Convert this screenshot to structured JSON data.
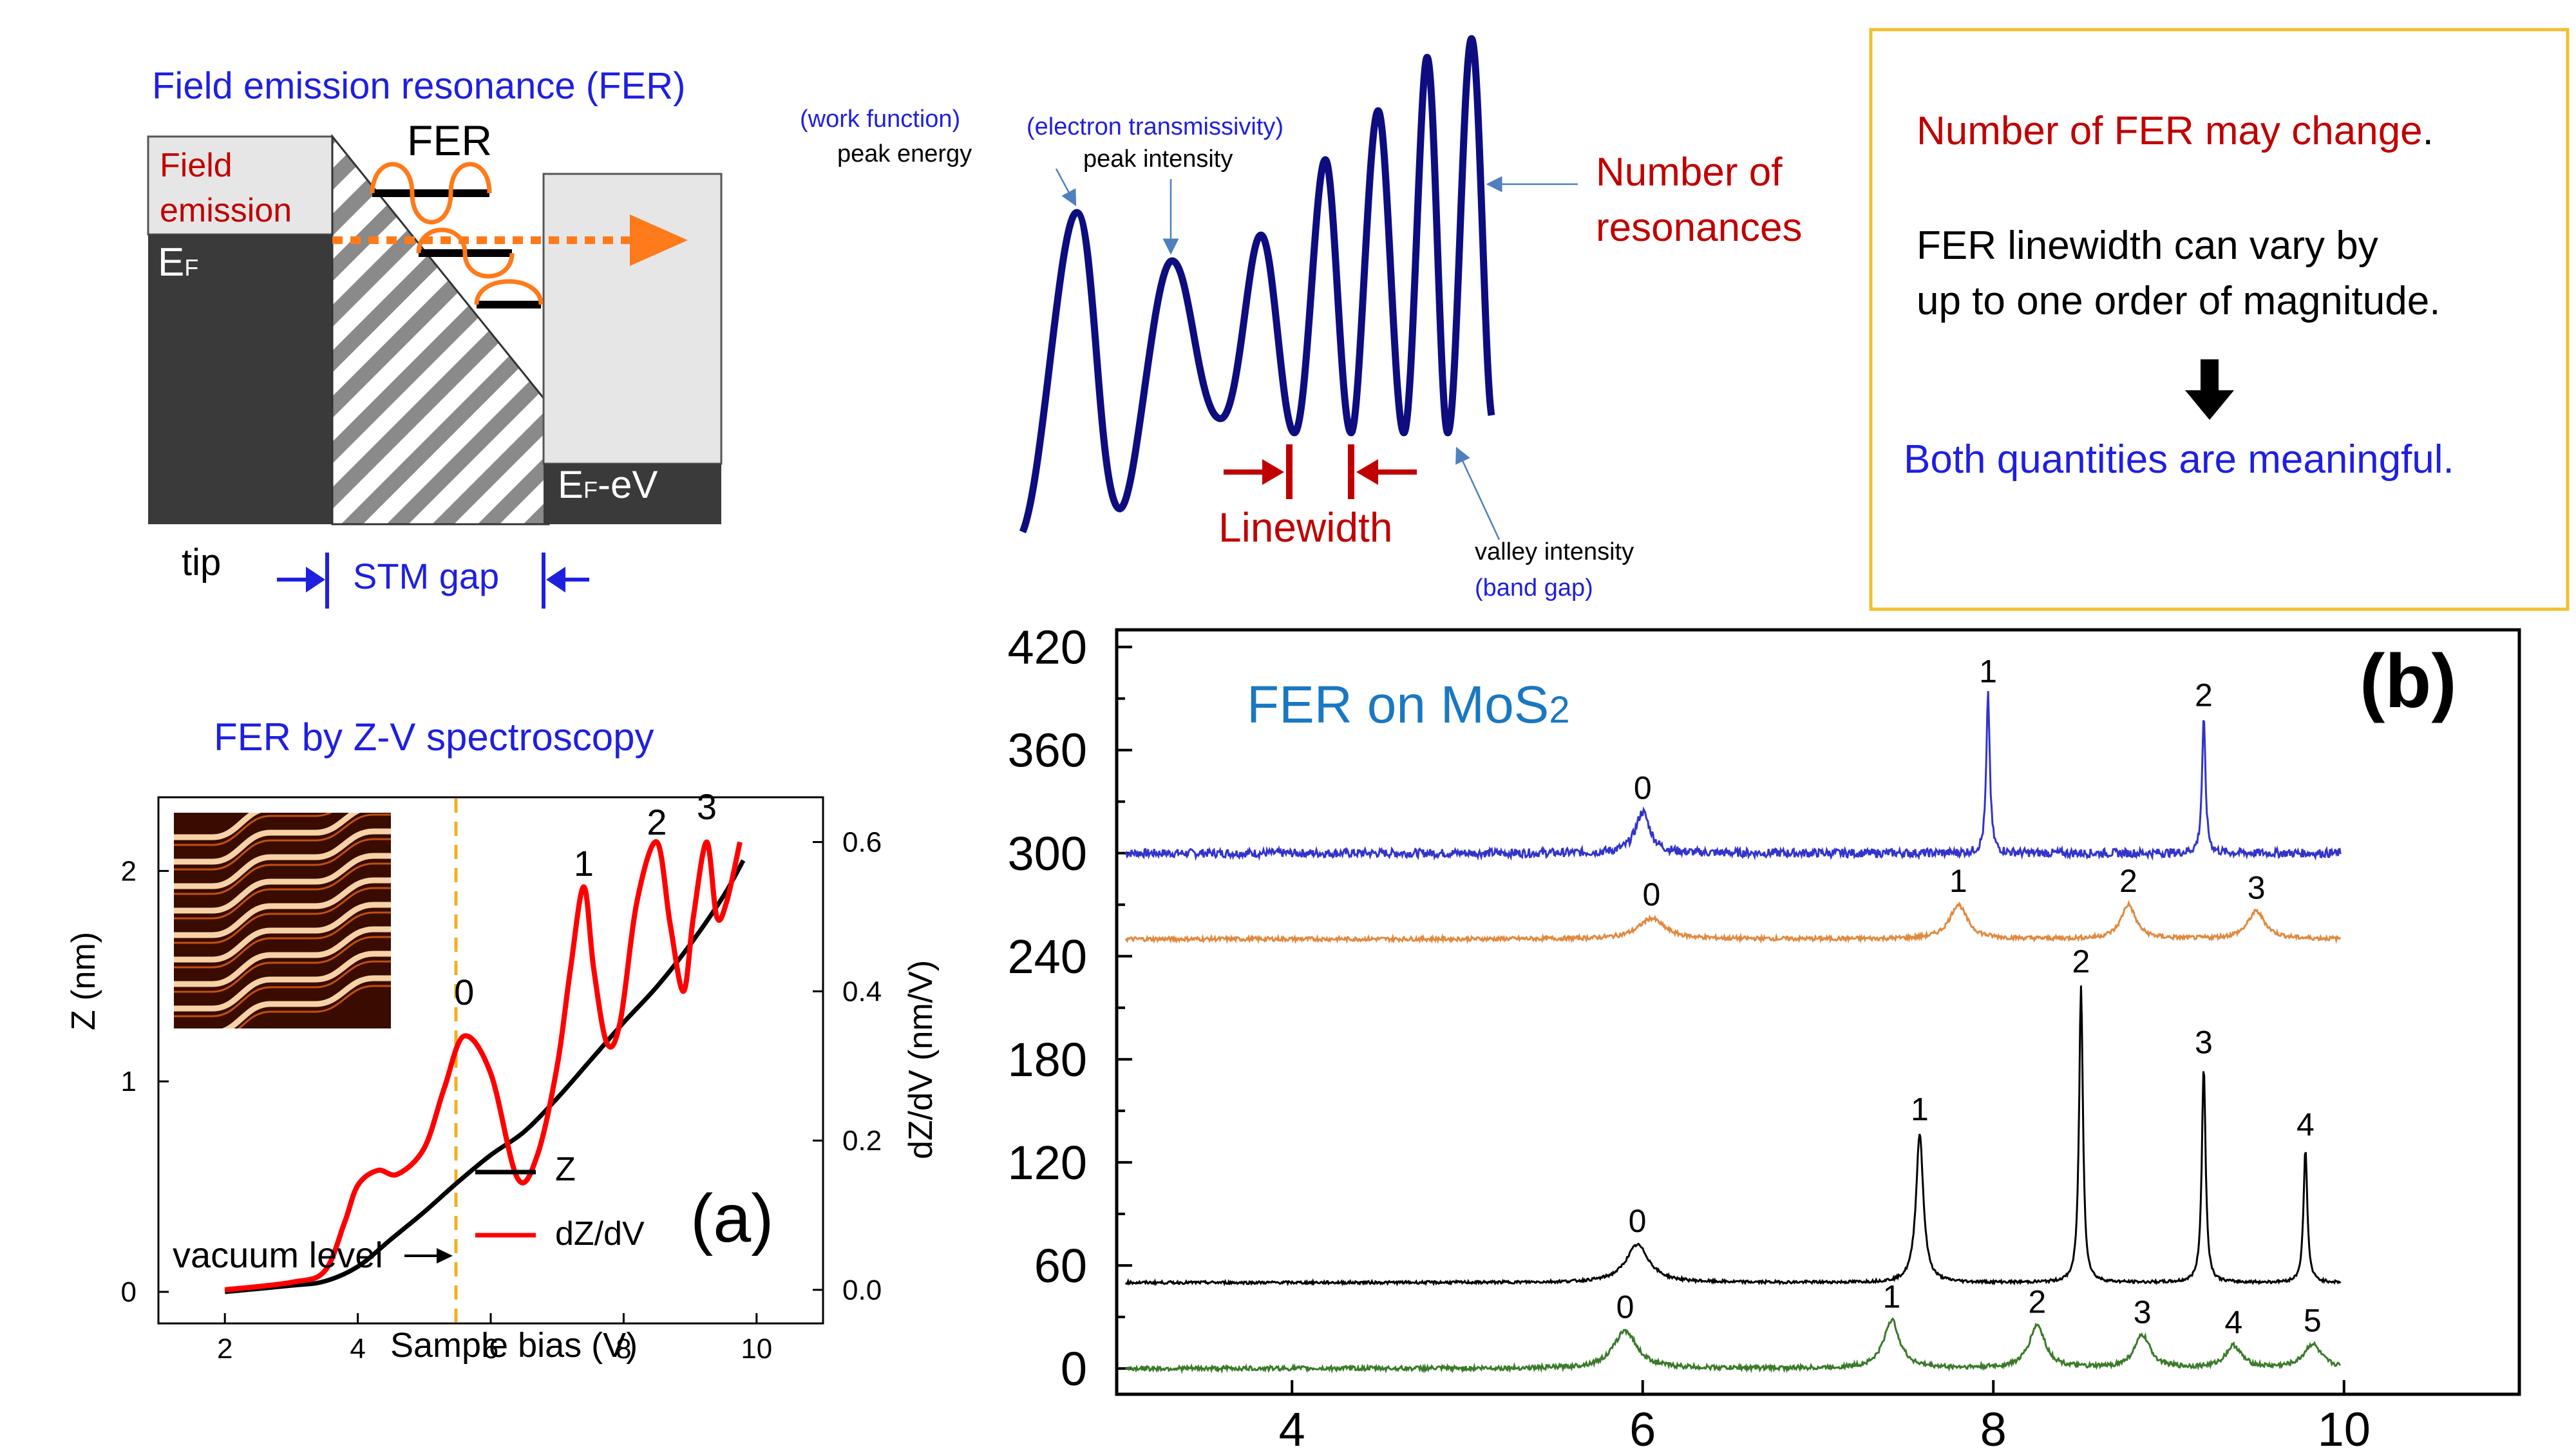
{
  "colors": {
    "blue_text": "#1f1fe0",
    "red_text": "#c00000",
    "navy_curve": "#0d0d80",
    "orange": "#ff7a1a",
    "gold_box": "#f0c030",
    "dark_gray": "#3a3a3a",
    "light_gray": "#e6e6e6",
    "fer_blue": "#1a78c2"
  },
  "band_diagram": {
    "title": "Field emission resonance (FER)",
    "field_emission_label": "Field emission",
    "fer_label": "FER",
    "ef_label": "EF",
    "ef_minus_ev_label": "EF-eV",
    "tip_label": "tip",
    "gap_label": "STM gap"
  },
  "resonance_curve": {
    "work_function_label": "(work function)",
    "peak_energy_label": "peak energy",
    "transmissivity_label": "(electron transmissivity)",
    "peak_intensity_label": "peak intensity",
    "number_label_line1": "Number of",
    "number_label_line2": "resonances",
    "linewidth_label": "Linewidth",
    "valley_intensity_label": "valley intensity",
    "band_gap_label": "(band gap)"
  },
  "note_box": {
    "line1": "Number of FER may change",
    "line1_period": ".",
    "line2": "FER linewidth can vary by",
    "line3": "up to one order of magnitude.",
    "arrow_icon": "down-arrow-icon",
    "line4": "Both quantities are meaningful."
  },
  "panel_a": {
    "title": "FER by Z-V spectroscopy",
    "panel_letter": "(a)",
    "xlabel": "Sample bias (V)",
    "ylabel_left": "Z (nm)",
    "ylabel_right": "dZ/dV (nm/V)",
    "vacuum_level_label": "vacuum level",
    "legend_z": "Z",
    "legend_dzdv": "dZ/dV",
    "x_ticks": [
      "2",
      "4",
      "6",
      "8",
      "10"
    ],
    "y_left_ticks": [
      "0",
      "1",
      "2"
    ],
    "y_right_ticks": [
      "0.0",
      "0.2",
      "0.4",
      "0.6"
    ],
    "peak_labels": [
      "0",
      "1",
      "2",
      "3"
    ]
  },
  "panel_b": {
    "title_main": "FER on MoS",
    "title_sub": "2",
    "panel_letter": "(b)",
    "x_ticks": [
      "4",
      "6",
      "8",
      "10"
    ],
    "y_ticks": [
      "0",
      "60",
      "120",
      "180",
      "240",
      "300",
      "360",
      "420"
    ]
  },
  "chart_data": [
    {
      "type": "line",
      "panel": "(a)",
      "xlabel": "Sample bias (V)",
      "ylabel": "Z (nm)",
      "y2label": "dZ/dV (nm/V)",
      "xlim": [
        1,
        11
      ],
      "ylim": [
        -0.15,
        2.35
      ],
      "y2lim": [
        -0.045,
        0.66
      ],
      "vacuum_level_x": 5.5,
      "series": [
        {
          "name": "Z",
          "color": "#000000",
          "axis": "left",
          "x": [
            2.0,
            3.0,
            3.5,
            4.0,
            4.5,
            5.0,
            5.5,
            6.0,
            6.5,
            7.0,
            7.5,
            8.0,
            8.5,
            9.0,
            9.5,
            9.8
          ],
          "y": [
            0.0,
            0.03,
            0.05,
            0.12,
            0.25,
            0.38,
            0.52,
            0.65,
            0.76,
            0.92,
            1.1,
            1.28,
            1.45,
            1.65,
            1.88,
            2.05
          ]
        },
        {
          "name": "dZ/dV",
          "color": "#ff0000",
          "axis": "right",
          "x": [
            2.0,
            3.0,
            3.5,
            3.8,
            4.0,
            4.3,
            4.6,
            5.0,
            5.3,
            5.6,
            6.0,
            6.4,
            6.7,
            7.0,
            7.2,
            7.4,
            7.55,
            7.75,
            7.95,
            8.2,
            8.5,
            8.7,
            8.9,
            9.05,
            9.25,
            9.4,
            9.55,
            9.75
          ],
          "y": [
            0.0,
            0.01,
            0.025,
            0.09,
            0.14,
            0.16,
            0.155,
            0.19,
            0.27,
            0.34,
            0.29,
            0.15,
            0.18,
            0.3,
            0.43,
            0.54,
            0.43,
            0.33,
            0.36,
            0.52,
            0.6,
            0.49,
            0.4,
            0.5,
            0.6,
            0.5,
            0.52,
            0.6
          ]
        }
      ],
      "peak_labels": [
        {
          "text": "0",
          "x": 5.6
        },
        {
          "text": "1",
          "x": 7.4
        },
        {
          "text": "2",
          "x": 8.5
        },
        {
          "text": "3",
          "x": 9.25
        }
      ]
    },
    {
      "type": "line",
      "panel": "(b)",
      "title": "FER on MoS2",
      "xlim": [
        3,
        11
      ],
      "ylim": [
        -15,
        430
      ],
      "x_ticks": [
        4,
        6,
        8,
        10
      ],
      "y_ticks": [
        0,
        60,
        120,
        180,
        240,
        300,
        360,
        420
      ],
      "series": [
        {
          "color": "#3333cc",
          "baseline": 300,
          "noise": 2.5,
          "peaks": [
            {
              "label": "0",
              "x": 6.0,
              "height": 24,
              "width": 0.05
            },
            {
              "label": "1",
              "x": 7.97,
              "height": 92,
              "width": 0.012
            },
            {
              "label": "2",
              "x": 9.2,
              "height": 78,
              "width": 0.012
            }
          ]
        },
        {
          "color": "#e08a40",
          "baseline": 250,
          "noise": 1.2,
          "peaks": [
            {
              "label": "0",
              "x": 6.05,
              "height": 12,
              "width": 0.09
            },
            {
              "label": "1",
              "x": 7.8,
              "height": 20,
              "width": 0.06
            },
            {
              "label": "2",
              "x": 8.77,
              "height": 20,
              "width": 0.05
            },
            {
              "label": "3",
              "x": 9.5,
              "height": 16,
              "width": 0.06
            }
          ]
        },
        {
          "color": "#000000",
          "baseline": 50,
          "noise": 0.8,
          "peaks": [
            {
              "label": "0",
              "x": 5.97,
              "height": 22,
              "width": 0.08
            },
            {
              "label": "1",
              "x": 7.58,
              "height": 87,
              "width": 0.025
            },
            {
              "label": "2",
              "x": 8.5,
              "height": 173,
              "width": 0.013
            },
            {
              "label": "3",
              "x": 9.2,
              "height": 126,
              "width": 0.013
            },
            {
              "label": "4",
              "x": 9.78,
              "height": 78,
              "width": 0.013
            }
          ]
        },
        {
          "color": "#3a7a2a",
          "baseline": 0,
          "noise": 1.3,
          "peaks": [
            {
              "label": "0",
              "x": 5.9,
              "height": 22,
              "width": 0.08
            },
            {
              "label": "1",
              "x": 7.42,
              "height": 28,
              "width": 0.055
            },
            {
              "label": "2",
              "x": 8.25,
              "height": 25,
              "width": 0.055
            },
            {
              "label": "3",
              "x": 8.85,
              "height": 19,
              "width": 0.055
            },
            {
              "label": "4",
              "x": 9.37,
              "height": 13,
              "width": 0.055
            },
            {
              "label": "5",
              "x": 9.82,
              "height": 14,
              "width": 0.06
            }
          ]
        }
      ]
    }
  ]
}
